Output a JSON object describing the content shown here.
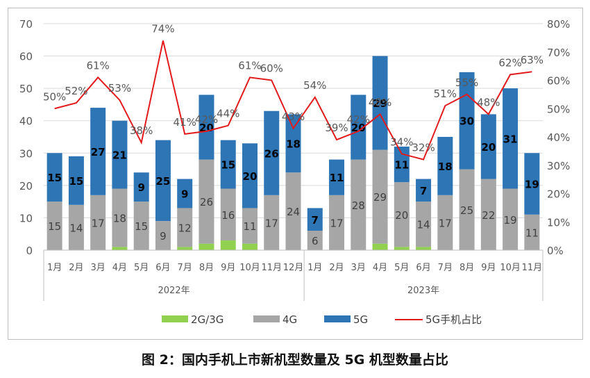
{
  "caption": "图 2：国内手机上市新机型数量及 5G 机型数量占比",
  "chart_data": {
    "type": "bar",
    "stacked": true,
    "categories": [
      "1月",
      "2月",
      "3月",
      "4月",
      "5月",
      "6月",
      "7月",
      "8月",
      "9月",
      "10月",
      "11月",
      "12月",
      "1月",
      "2月",
      "3月",
      "4月",
      "5月",
      "6月",
      "7月",
      "8月",
      "9月",
      "10月",
      "11月"
    ],
    "groups": [
      {
        "label": "2022年",
        "count": 12
      },
      {
        "label": "2023年",
        "count": 11
      }
    ],
    "series": [
      {
        "name": "2G/3G",
        "color": "#92d050",
        "values": [
          0,
          0,
          0,
          1,
          0,
          0,
          1,
          2,
          3,
          2,
          0,
          0,
          0,
          0,
          0,
          2,
          1,
          1,
          0,
          0,
          0,
          0,
          0
        ]
      },
      {
        "name": "4G",
        "color": "#a6a6a6",
        "values": [
          15,
          14,
          17,
          18,
          15,
          9,
          12,
          26,
          16,
          11,
          17,
          24,
          6,
          17,
          28,
          29,
          20,
          14,
          17,
          25,
          22,
          19,
          11
        ]
      },
      {
        "name": "5G",
        "color": "#2e75b6",
        "values": [
          15,
          15,
          27,
          21,
          9,
          25,
          9,
          20,
          15,
          20,
          26,
          18,
          7,
          11,
          20,
          29,
          11,
          7,
          18,
          30,
          20,
          31,
          19
        ]
      }
    ],
    "line_series": {
      "name": "5G手机占比",
      "color": "#e31a1c",
      "axis": "right",
      "values": [
        50,
        52,
        61,
        53,
        38,
        74,
        41,
        42,
        44,
        61,
        60,
        43,
        54,
        39,
        42,
        48,
        34,
        32,
        51,
        55,
        48,
        62,
        63
      ],
      "labels": [
        "50%",
        "52%",
        "61%",
        "53%",
        "38%",
        "74%",
        "41%",
        "42%",
        "44%",
        "61%",
        "60%",
        "43%",
        "54%",
        "39%",
        "42%",
        "48%",
        "34%",
        "32%",
        "51%",
        "55%",
        "48%",
        "62%",
        "63%"
      ]
    },
    "y_left": {
      "min": 0,
      "max": 70,
      "ticks": [
        "0",
        "10",
        "20",
        "30",
        "40",
        "50",
        "60",
        "70"
      ]
    },
    "y_right": {
      "min": 0,
      "max": 80,
      "ticks": [
        "0%",
        "10%",
        "20%",
        "30%",
        "40%",
        "50%",
        "60%",
        "70%",
        "80%"
      ]
    },
    "legend_position": "bottom",
    "grid": true
  }
}
